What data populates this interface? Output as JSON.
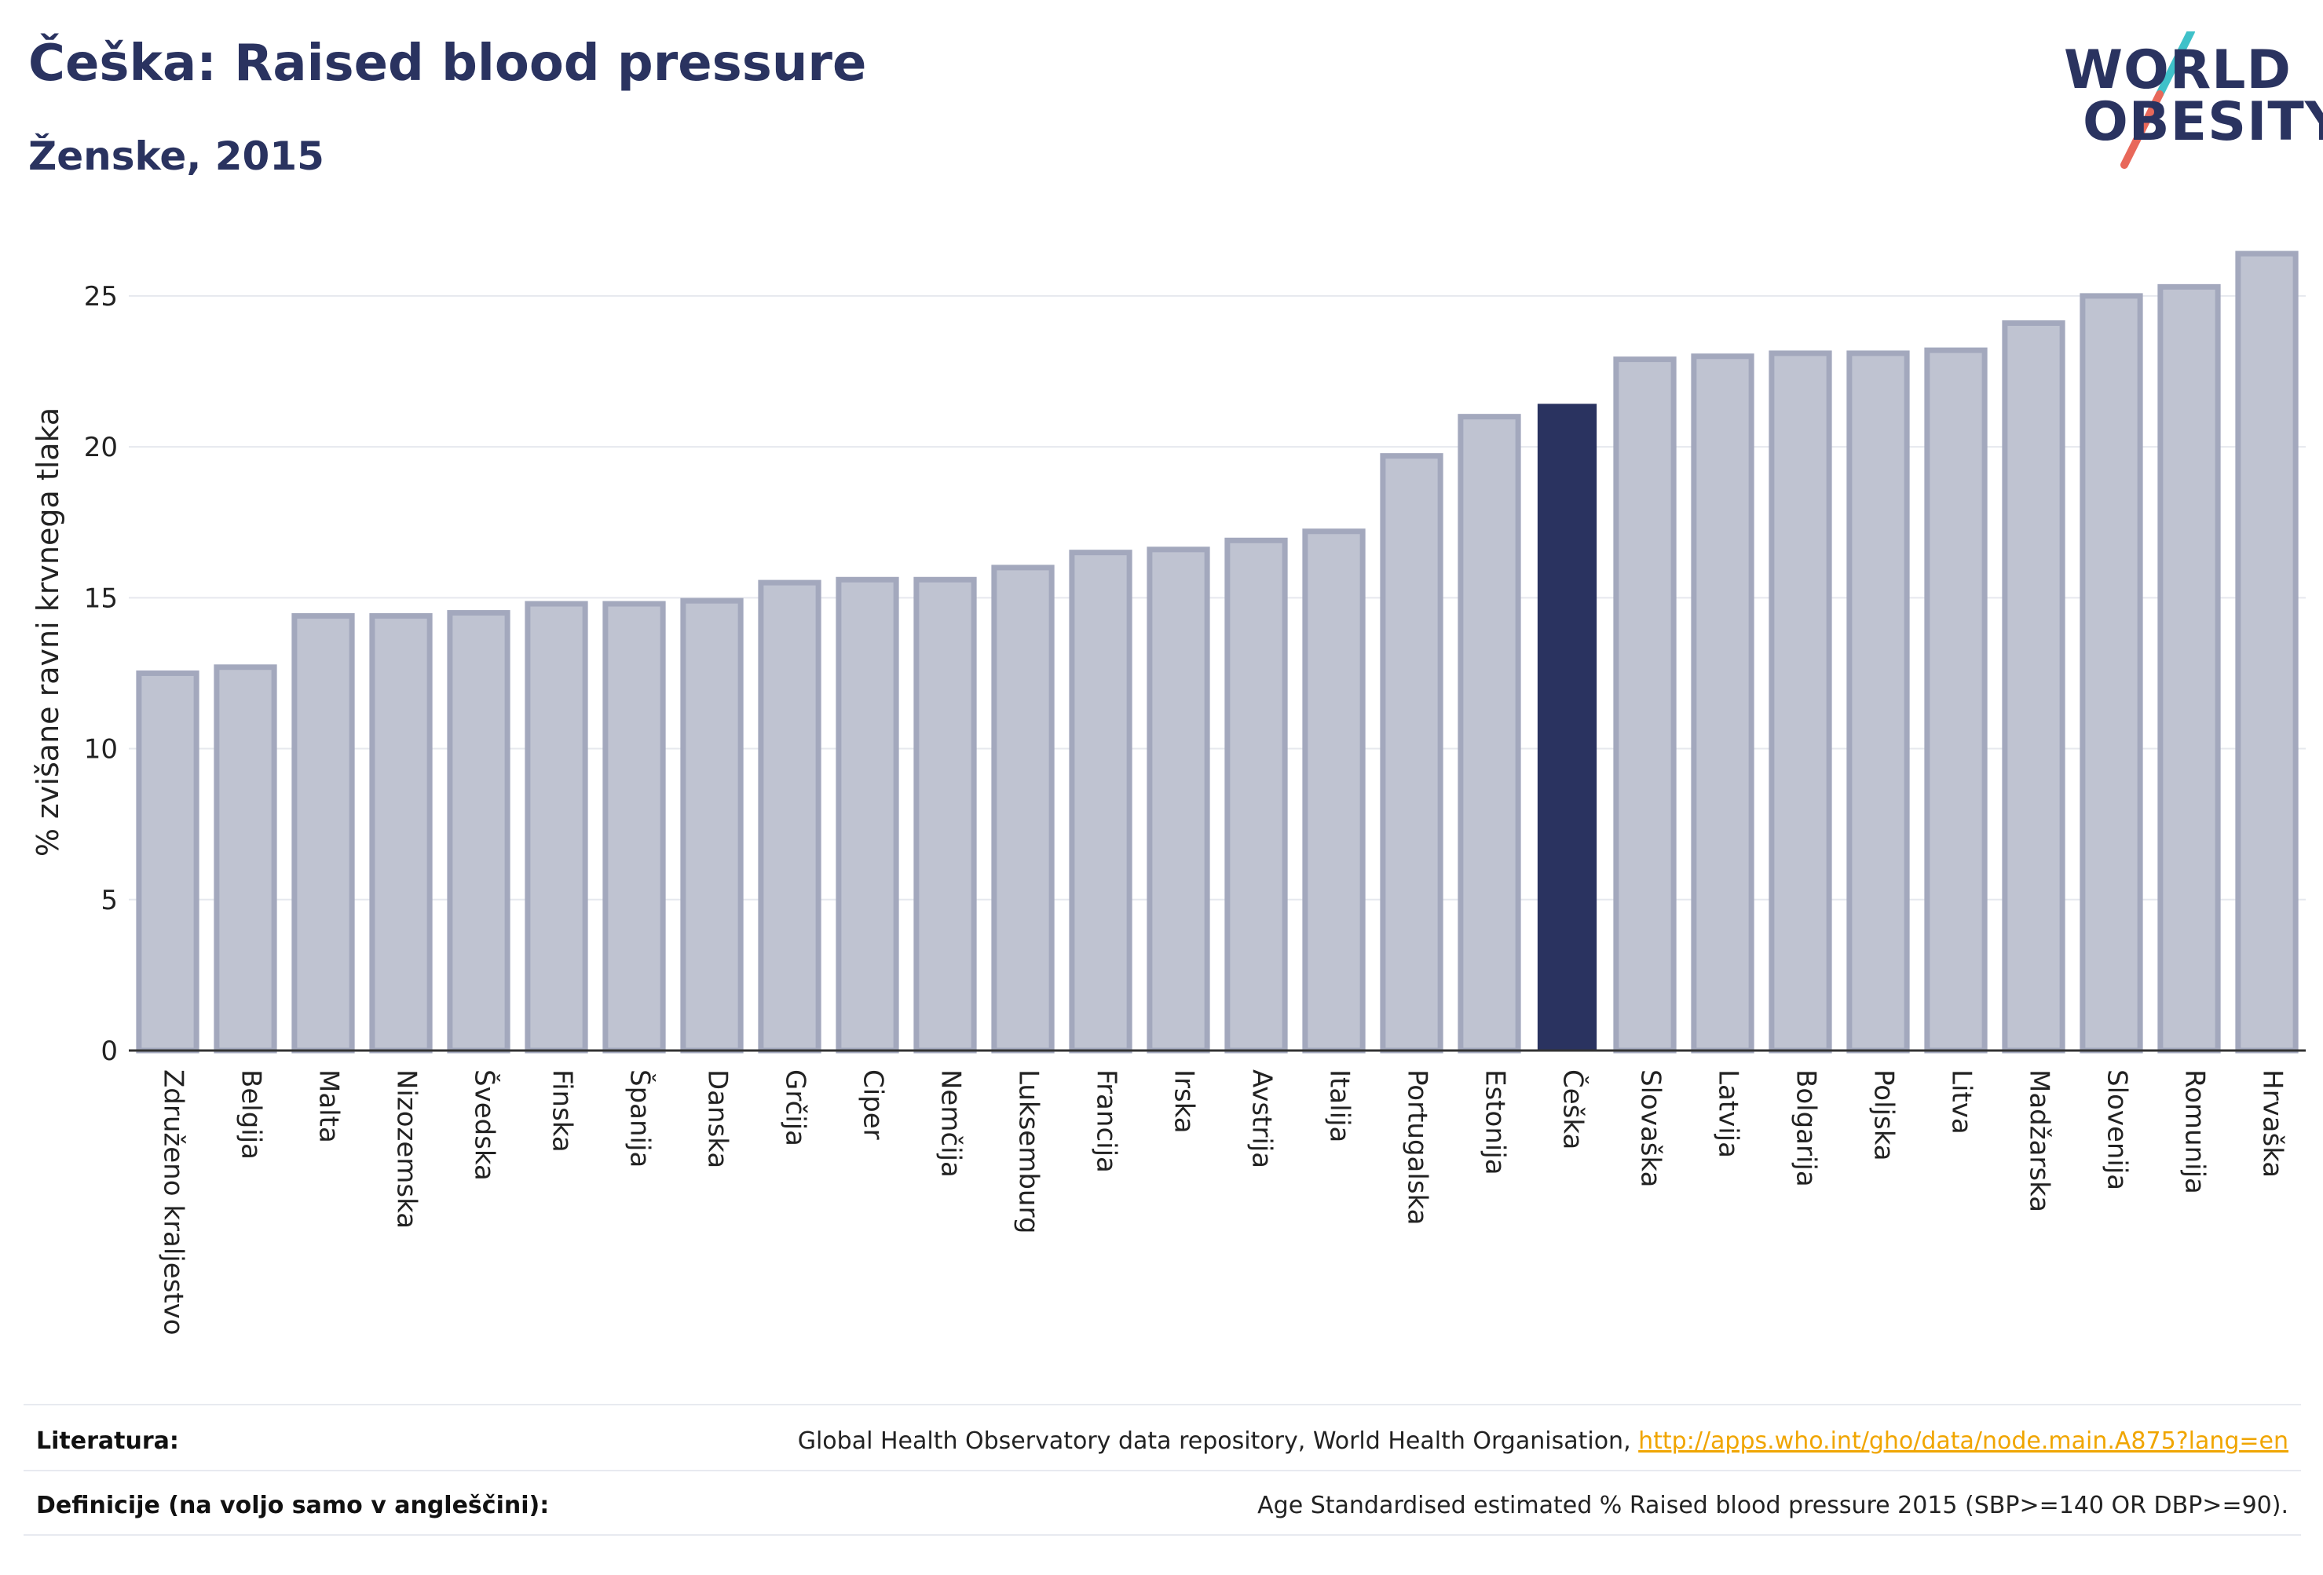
{
  "header": {
    "title": "Češka: Raised blood pressure",
    "subtitle": "Ženske, 2015"
  },
  "logo": {
    "line1": "WORLD",
    "line2": "OBESITY",
    "slash_colors": [
      "#3fc1c9",
      "#e8685a"
    ]
  },
  "colors": {
    "bar_fill": "#bfc3d1",
    "bar_stroke": "#a3a8bd",
    "highlight": "#2a3360",
    "grid": "#e6e8ee",
    "axis": "#333333"
  },
  "chart_data": {
    "type": "bar",
    "ylabel": "% zvišane ravni krvnega tlaka",
    "ylim": [
      0,
      27
    ],
    "yticks": [
      0,
      5,
      10,
      15,
      20,
      25
    ],
    "grid": true,
    "highlight_category": "Češka",
    "categories": [
      "Združeno kraljestvo",
      "Belgija",
      "Malta",
      "Nizozemska",
      "Švedska",
      "Finska",
      "Španija",
      "Danska",
      "Grčija",
      "Ciper",
      "Nemčija",
      "Luksemburg",
      "Francija",
      "Irska",
      "Avstrija",
      "Italija",
      "Portugalska",
      "Estonija",
      "Češka",
      "Slovaška",
      "Latvija",
      "Bolgarija",
      "Poljska",
      "Litva",
      "Madžarska",
      "Slovenija",
      "Romunija",
      "Hrvaška"
    ],
    "values": [
      12.5,
      12.7,
      14.4,
      14.4,
      14.5,
      14.8,
      14.8,
      14.9,
      15.5,
      15.6,
      15.6,
      16.0,
      16.5,
      16.6,
      16.9,
      17.2,
      19.7,
      21.0,
      21.4,
      22.9,
      23.0,
      23.1,
      23.1,
      23.2,
      24.1,
      25.0,
      25.3,
      26.4
    ]
  },
  "footer": {
    "literatura_label": "Literatura:",
    "literatura_text": "Global Health Observatory data repository, World Health Organisation, ",
    "literatura_link": "http://apps.who.int/gho/data/node.main.A875?lang=en",
    "definicije_label": "Definicije (na voljo samo v angleščini):",
    "definicije_text": "Age Standardised estimated % Raised blood pressure 2015 (SBP>=140 OR DBP>=90)."
  }
}
